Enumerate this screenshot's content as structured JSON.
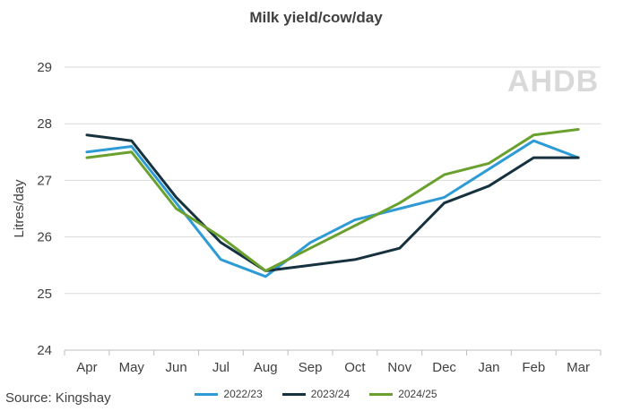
{
  "chart_data": {
    "type": "line",
    "title": "Milk yield/cow/day",
    "ylabel": "Litres/day",
    "xlabel": "",
    "categories": [
      "Apr",
      "May",
      "Jun",
      "Jul",
      "Aug",
      "Sep",
      "Oct",
      "Nov",
      "Dec",
      "Jan",
      "Feb",
      "Mar"
    ],
    "ylim": [
      24,
      29
    ],
    "yticks": [
      24,
      25,
      26,
      27,
      28,
      29
    ],
    "grid": true,
    "legend_position": "bottom",
    "series": [
      {
        "name": "2022/23",
        "color": "#2e9bd6",
        "values": [
          27.5,
          27.6,
          26.6,
          25.6,
          25.3,
          25.9,
          26.3,
          26.5,
          26.7,
          27.2,
          27.7,
          27.4
        ]
      },
      {
        "name": "2023/24",
        "color": "#17323f",
        "values": [
          27.8,
          27.7,
          26.7,
          25.9,
          25.4,
          25.5,
          25.6,
          25.8,
          26.6,
          26.9,
          27.4,
          27.4
        ]
      },
      {
        "name": "2024/25",
        "color": "#6aa12e",
        "values": [
          27.4,
          27.5,
          26.5,
          26.0,
          25.4,
          25.8,
          26.2,
          26.6,
          27.1,
          27.3,
          27.8,
          27.9
        ]
      }
    ],
    "source": "Source: Kingshay"
  },
  "logo_text": "AHDB"
}
